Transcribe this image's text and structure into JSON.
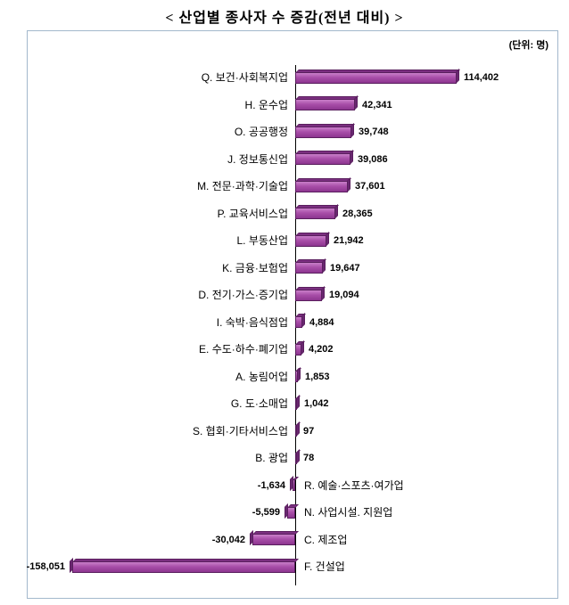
{
  "title": "< 산업별 종사자 수 증감(전년 대비) >",
  "unit_label": "(단위: 명)",
  "chart_data": {
    "type": "bar",
    "orientation": "horizontal",
    "title": "산업별 종사자 수 증감(전년 대비)",
    "unit": "명",
    "xlabel": "",
    "ylabel": "",
    "grid": false,
    "legend": "none",
    "bar_color": "#a94fa9",
    "axis_color": "#000000",
    "box_border_color": "#a3b8cc",
    "xlim": [
      -170000,
      130000
    ],
    "categories": [
      "Q. 보건·사회복지업",
      "H. 운수업",
      "O. 공공행정",
      "J. 정보통신업",
      "M. 전문·과학·기술업",
      "P. 교육서비스업",
      "L. 부동산업",
      "K. 금융·보험업",
      "D. 전기·가스·증기업",
      "I. 숙박·음식점업",
      "E. 수도·하수·폐기업",
      "A. 농림어업",
      "G. 도·소매업",
      "S. 협회·기타서비스업",
      "B. 광업",
      "R. 예술·스포츠·여가업",
      "N. 사업시설. 지원업",
      "C. 제조업",
      "F. 건설업"
    ],
    "values": [
      114402,
      42341,
      39748,
      39086,
      37601,
      28365,
      21942,
      19647,
      19094,
      4884,
      4202,
      1853,
      1042,
      97,
      78,
      -1634,
      -5599,
      -30042,
      -158051
    ],
    "value_labels": [
      "114,402",
      "42,341",
      "39,748",
      "39,086",
      "37,601",
      "28,365",
      "21,942",
      "19,647",
      "19,094",
      "4,884",
      "4,202",
      "1,853",
      "1,042",
      "97",
      "78",
      "-1,634",
      "-5,599",
      "-30,042",
      "-158,051"
    ]
  }
}
